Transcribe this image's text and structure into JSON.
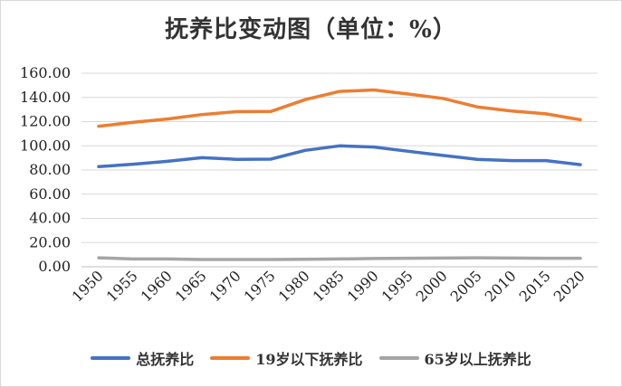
{
  "chart_data": {
    "type": "line",
    "title": "抚养比变动图（单位：%）",
    "x": [
      "1950",
      "1955",
      "1960",
      "1965",
      "1970",
      "1975",
      "1980",
      "1985",
      "1990",
      "1995",
      "2000",
      "2005",
      "2010",
      "2015",
      "2020"
    ],
    "y_ticks": [
      "0.00",
      "20.00",
      "40.00",
      "60.00",
      "80.00",
      "100.00",
      "120.00",
      "140.00",
      "160.00"
    ],
    "ylim": [
      0,
      160
    ],
    "grid": "horizontal",
    "legend_position": "bottom",
    "series": [
      {
        "name": "总抚养比",
        "color": "#4472C4",
        "values": [
          82.8,
          84.8,
          87.2,
          90.2,
          88.8,
          89.0,
          96.2,
          100.0,
          99.0,
          95.5,
          92.0,
          88.8,
          87.8,
          87.8,
          84.4
        ]
      },
      {
        "name": "19岁以下抚养比",
        "color": "#ED7D31",
        "values": [
          116.2,
          119.4,
          122.2,
          125.8,
          128.2,
          128.4,
          138.2,
          145.0,
          146.2,
          142.8,
          139.2,
          132.2,
          128.8,
          126.4,
          121.6
        ]
      },
      {
        "name": "65岁以上抚养比",
        "color": "#A5A5A5",
        "values": [
          7.4,
          6.4,
          6.4,
          6.0,
          6.0,
          6.0,
          6.2,
          6.4,
          6.8,
          7.0,
          7.2,
          7.4,
          7.2,
          7.0,
          7.0
        ]
      }
    ]
  }
}
